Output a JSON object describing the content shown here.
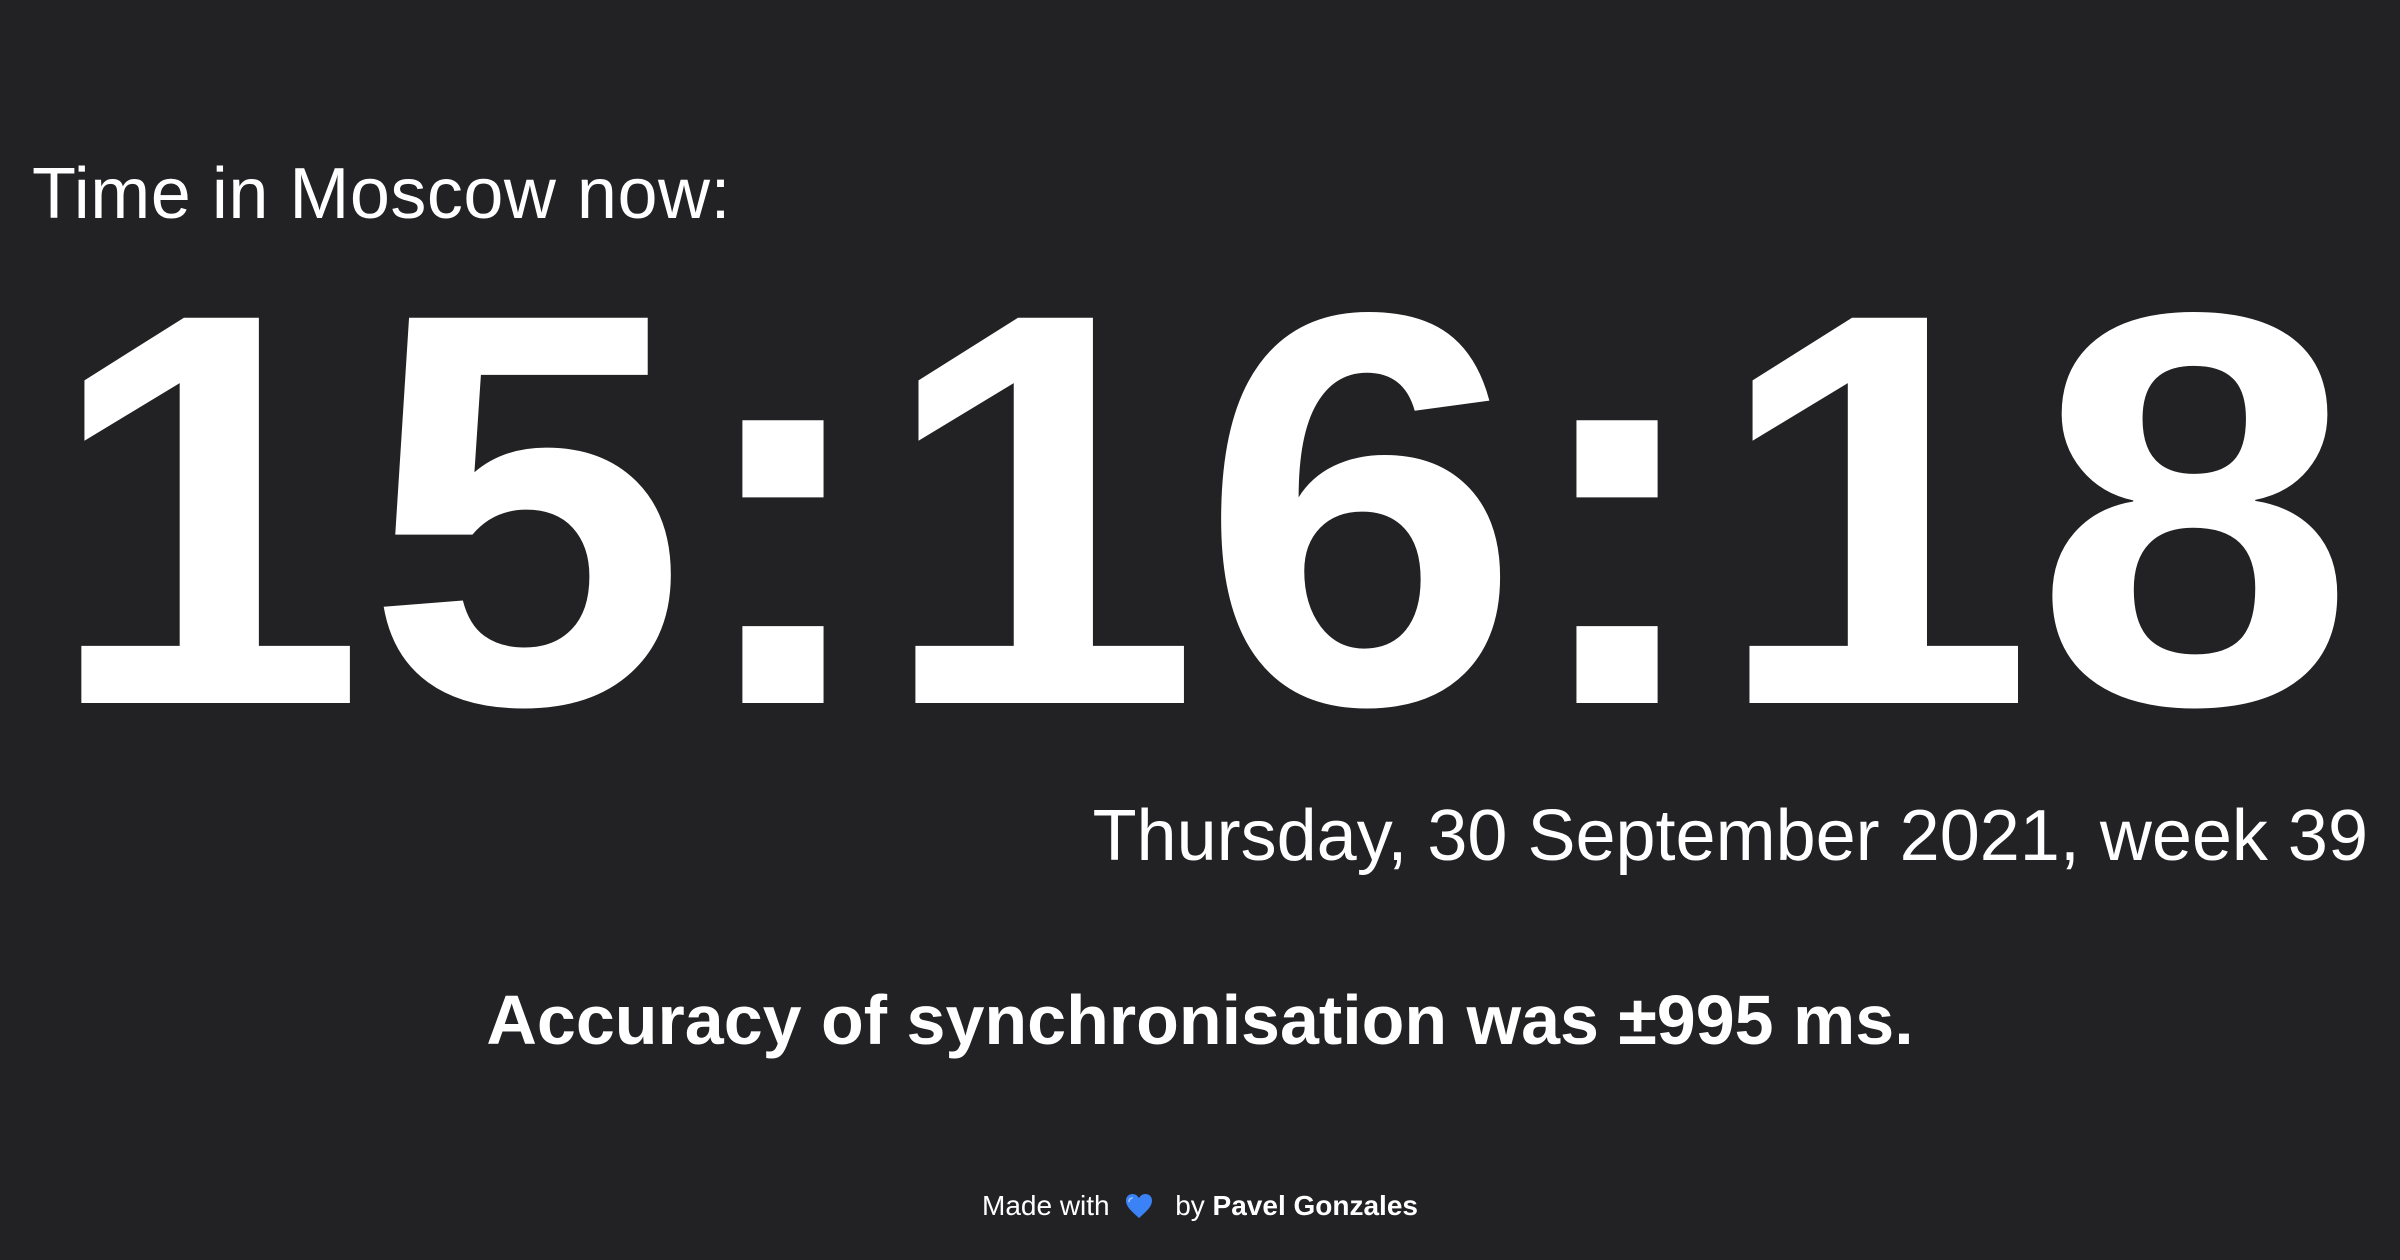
{
  "header": {
    "label": "Time in Moscow now:"
  },
  "clock": {
    "time": "15:16:18"
  },
  "date": {
    "text": "Thursday, 30 September 2021, week 39"
  },
  "sync": {
    "accuracy_text": "Accuracy of synchronisation was ±995 ms."
  },
  "footer": {
    "made_with": "Made with",
    "by": "by",
    "author": "Pavel Gonzales",
    "heart_icon": "blue-heart-icon",
    "heart_color": "#3b82f6"
  },
  "colors": {
    "background": "#222224",
    "text": "#ffffff"
  }
}
